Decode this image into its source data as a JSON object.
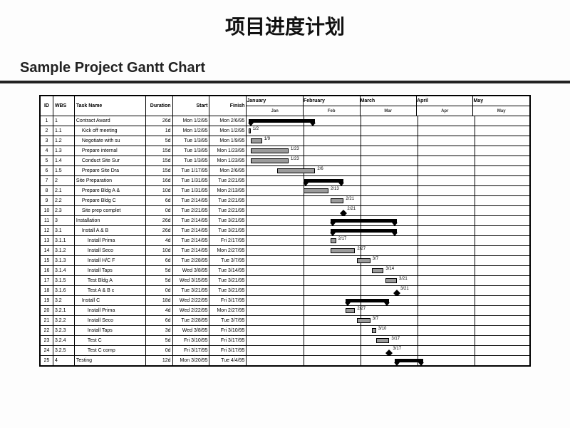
{
  "title_main": "项目进度计划",
  "title_sub": "Sample Project Gantt Chart",
  "columns": {
    "id": "ID",
    "wbs": "WBS",
    "task": "Task Name",
    "dur": "Duration",
    "start": "Start",
    "finish": "Finish"
  },
  "months": [
    {
      "name": "January",
      "sub": "Jan"
    },
    {
      "name": "February",
      "sub": "Feb"
    },
    {
      "name": "March",
      "sub": "Mar"
    },
    {
      "name": "April",
      "sub": "Apr"
    },
    {
      "name": "May",
      "sub": "May"
    }
  ],
  "timeline_start_day": 0,
  "timeline_days": 150,
  "colors": {
    "bar_fill": "#9a9a9a",
    "bar_border": "#000000",
    "summary": "#000000",
    "grid": "#000000",
    "bg": "#fdfdfd"
  },
  "rows": [
    {
      "id": "1",
      "wbs": "1",
      "name": "Contract Award",
      "indent": 0,
      "dur": "26d",
      "start": "Mon 1/2/95",
      "finish": "Mon 2/6/95",
      "type": "summary",
      "s": 1,
      "e": 36,
      "label": ""
    },
    {
      "id": "2",
      "wbs": "1.1",
      "name": "Kick off meeting",
      "indent": 1,
      "dur": "1d",
      "start": "Mon 1/2/95",
      "finish": "Mon 1/2/95",
      "type": "bar",
      "s": 1,
      "e": 2,
      "label": "1/2"
    },
    {
      "id": "3",
      "wbs": "1.2",
      "name": "Negotiate with su",
      "indent": 1,
      "dur": "5d",
      "start": "Tue 1/3/95",
      "finish": "Mon 1/9/95",
      "type": "bar",
      "s": 2,
      "e": 8,
      "label": "1/9"
    },
    {
      "id": "4",
      "wbs": "1.3",
      "name": "Prepare internal",
      "indent": 1,
      "dur": "15d",
      "start": "Tue 1/3/95",
      "finish": "Mon 1/23/95",
      "type": "bar",
      "s": 2,
      "e": 22,
      "label": "1/23"
    },
    {
      "id": "5",
      "wbs": "1.4",
      "name": "Conduct Site Sur",
      "indent": 1,
      "dur": "15d",
      "start": "Tue 1/3/95",
      "finish": "Mon 1/23/95",
      "type": "bar",
      "s": 2,
      "e": 22,
      "label": "1/23"
    },
    {
      "id": "6",
      "wbs": "1.5",
      "name": "Prepare Site Dra",
      "indent": 1,
      "dur": "15d",
      "start": "Tue 1/17/95",
      "finish": "Mon 2/6/95",
      "type": "bar",
      "s": 16,
      "e": 36,
      "label": "2/6"
    },
    {
      "id": "7",
      "wbs": "2",
      "name": "Site Preparation",
      "indent": 0,
      "dur": "16d",
      "start": "Tue 1/31/95",
      "finish": "Tue 2/21/95",
      "type": "summary",
      "s": 30,
      "e": 51,
      "label": ""
    },
    {
      "id": "8",
      "wbs": "2.1",
      "name": "Prepare Bldg A &",
      "indent": 1,
      "dur": "10d",
      "start": "Tue 1/31/95",
      "finish": "Mon 2/13/95",
      "type": "bar",
      "s": 30,
      "e": 43,
      "label": "2/13"
    },
    {
      "id": "9",
      "wbs": "2.2",
      "name": "Prepare Bldg C",
      "indent": 1,
      "dur": "6d",
      "start": "Tue 2/14/95",
      "finish": "Tue 2/21/95",
      "type": "bar",
      "s": 44,
      "e": 51,
      "label": "2/21"
    },
    {
      "id": "10",
      "wbs": "2.3",
      "name": "Site prep complet",
      "indent": 1,
      "dur": "0d",
      "start": "Tue 2/21/95",
      "finish": "Tue 2/21/95",
      "type": "milestone",
      "s": 51,
      "e": 51,
      "label": "2/21"
    },
    {
      "id": "11",
      "wbs": "3",
      "name": "Installation",
      "indent": 0,
      "dur": "26d",
      "start": "Tue 2/14/95",
      "finish": "Tue 3/21/95",
      "type": "summary",
      "s": 44,
      "e": 79,
      "label": ""
    },
    {
      "id": "12",
      "wbs": "3.1",
      "name": "Install A & B",
      "indent": 1,
      "dur": "26d",
      "start": "Tue 2/14/95",
      "finish": "Tue 3/21/95",
      "type": "summary",
      "s": 44,
      "e": 79,
      "label": ""
    },
    {
      "id": "13",
      "wbs": "3.1.1",
      "name": "Install Prima",
      "indent": 2,
      "dur": "4d",
      "start": "Tue 2/14/95",
      "finish": "Fri 2/17/95",
      "type": "bar",
      "s": 44,
      "e": 47,
      "label": "2/17"
    },
    {
      "id": "14",
      "wbs": "3.1.2",
      "name": "Install Seco",
      "indent": 2,
      "dur": "10d",
      "start": "Tue 2/14/95",
      "finish": "Mon 2/27/95",
      "type": "bar",
      "s": 44,
      "e": 57,
      "label": "2/27"
    },
    {
      "id": "15",
      "wbs": "3.1.3",
      "name": "Install H/C F",
      "indent": 2,
      "dur": "6d",
      "start": "Tue 2/28/95",
      "finish": "Tue 3/7/95",
      "type": "bar",
      "s": 58,
      "e": 65,
      "label": "3/7"
    },
    {
      "id": "16",
      "wbs": "3.1.4",
      "name": "Install Taps",
      "indent": 2,
      "dur": "5d",
      "start": "Wed 3/8/95",
      "finish": "Tue 3/14/95",
      "type": "bar",
      "s": 66,
      "e": 72,
      "label": "3/14"
    },
    {
      "id": "17",
      "wbs": "3.1.5",
      "name": "Test Bldg A",
      "indent": 2,
      "dur": "5d",
      "start": "Wed 3/15/95",
      "finish": "Tue 3/21/95",
      "type": "bar",
      "s": 73,
      "e": 79,
      "label": "3/21"
    },
    {
      "id": "18",
      "wbs": "3.1.6",
      "name": "Test A & B c",
      "indent": 2,
      "dur": "0d",
      "start": "Tue 3/21/95",
      "finish": "Tue 3/21/95",
      "type": "milestone",
      "s": 79,
      "e": 79,
      "label": "3/21"
    },
    {
      "id": "19",
      "wbs": "3.2",
      "name": "Install C",
      "indent": 1,
      "dur": "18d",
      "start": "Wed 2/22/95",
      "finish": "Fri 3/17/95",
      "type": "summary",
      "s": 52,
      "e": 75,
      "label": ""
    },
    {
      "id": "20",
      "wbs": "3.2.1",
      "name": "Install Prima",
      "indent": 2,
      "dur": "4d",
      "start": "Wed 2/22/95",
      "finish": "Mon 2/27/95",
      "type": "bar",
      "s": 52,
      "e": 57,
      "label": "2/27"
    },
    {
      "id": "21",
      "wbs": "3.2.2",
      "name": "Install Seco",
      "indent": 2,
      "dur": "6d",
      "start": "Tue 2/28/95",
      "finish": "Tue 3/7/95",
      "type": "bar",
      "s": 58,
      "e": 65,
      "label": "3/7"
    },
    {
      "id": "22",
      "wbs": "3.2.3",
      "name": "Install Taps",
      "indent": 2,
      "dur": "3d",
      "start": "Wed 3/8/95",
      "finish": "Fri 3/10/95",
      "type": "bar",
      "s": 66,
      "e": 68,
      "label": "3/10"
    },
    {
      "id": "23",
      "wbs": "3.2.4",
      "name": "Test C",
      "indent": 2,
      "dur": "5d",
      "start": "Fri 3/10/95",
      "finish": "Fri 3/17/95",
      "type": "bar",
      "s": 68,
      "e": 75,
      "label": "3/17"
    },
    {
      "id": "24",
      "wbs": "3.2.5",
      "name": "Test C comp",
      "indent": 2,
      "dur": "0d",
      "start": "Fri 3/17/95",
      "finish": "Fri 3/17/95",
      "type": "milestone",
      "s": 75,
      "e": 75,
      "label": "3/17"
    },
    {
      "id": "25",
      "wbs": "4",
      "name": "Testing",
      "indent": 0,
      "dur": "12d",
      "start": "Mon 3/20/95",
      "finish": "Tue 4/4/95",
      "type": "summary",
      "s": 78,
      "e": 93,
      "label": ""
    }
  ]
}
